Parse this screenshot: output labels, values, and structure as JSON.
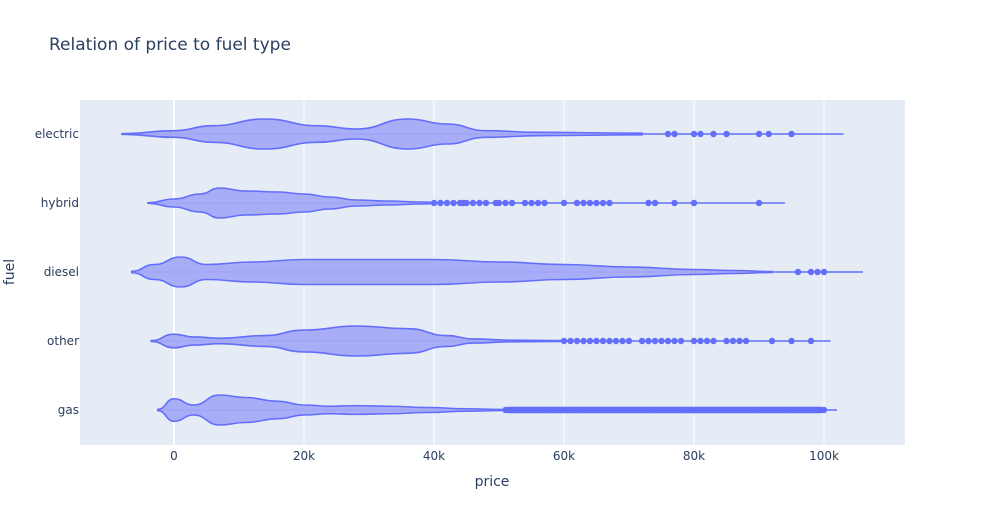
{
  "chart_data": {
    "type": "violin",
    "orientation": "horizontal",
    "title": "Relation of price to fuel type",
    "xlabel": "price",
    "ylabel": "fuel",
    "xlim": [
      -15000,
      112000
    ],
    "x_ticks": [
      0,
      20000,
      40000,
      60000,
      80000,
      100000
    ],
    "x_tick_labels": [
      "0",
      "20k",
      "40k",
      "60k",
      "80k",
      "100k"
    ],
    "categories": [
      "electric",
      "hybrid",
      "diesel",
      "other",
      "gas"
    ],
    "color": "#636efa",
    "fill_color": "#a4aaf7",
    "background_color": "#e5ecf6",
    "grid": true,
    "series": [
      {
        "category": "electric",
        "min": -8000,
        "max": 103000,
        "violin_extent": [
          -8000,
          72000
        ],
        "density": [
          [
            -8000,
            0.2
          ],
          [
            0,
            2
          ],
          [
            6000,
            5
          ],
          [
            14000,
            9
          ],
          [
            22000,
            5
          ],
          [
            28000,
            3
          ],
          [
            36000,
            9
          ],
          [
            42000,
            6
          ],
          [
            48000,
            2
          ],
          [
            56000,
            1
          ],
          [
            72000,
            0.5
          ]
        ],
        "outliers": [
          76000,
          77000,
          80000,
          81000,
          83000,
          85000,
          90000,
          91500,
          95000
        ]
      },
      {
        "category": "hybrid",
        "min": -4000,
        "max": 94000,
        "violin_extent": [
          -4000,
          41000
        ],
        "density": [
          [
            -4000,
            0.2
          ],
          [
            0,
            4
          ],
          [
            4000,
            9
          ],
          [
            7000,
            15
          ],
          [
            11000,
            12
          ],
          [
            16000,
            11
          ],
          [
            20000,
            9
          ],
          [
            24000,
            6
          ],
          [
            28000,
            3
          ],
          [
            33000,
            2
          ],
          [
            38000,
            1
          ],
          [
            41000,
            0.4
          ]
        ],
        "outliers": [
          40000,
          41000,
          42000,
          43000,
          44000,
          44500,
          45000,
          46000,
          47000,
          48000,
          49500,
          50000,
          51000,
          52000,
          54000,
          55000,
          56000,
          57000,
          60000,
          62000,
          63000,
          64000,
          65000,
          66000,
          67000,
          73000,
          74000,
          77000,
          80000,
          90000
        ]
      },
      {
        "category": "diesel",
        "min": -6500,
        "max": 106000,
        "violin_extent": [
          -6500,
          92000
        ],
        "density": [
          [
            -6500,
            0.3
          ],
          [
            -3000,
            3
          ],
          [
            1000,
            6
          ],
          [
            5000,
            3
          ],
          [
            12000,
            4
          ],
          [
            20000,
            5
          ],
          [
            30000,
            5
          ],
          [
            40000,
            5
          ],
          [
            50000,
            4
          ],
          [
            60000,
            3
          ],
          [
            70000,
            2
          ],
          [
            80000,
            1
          ],
          [
            86000,
            0.6
          ],
          [
            92000,
            0.2
          ]
        ],
        "outliers": [
          96000,
          98000,
          99000,
          100000
        ]
      },
      {
        "category": "other",
        "min": -3500,
        "max": 101000,
        "violin_extent": [
          -3500,
          60000
        ],
        "density": [
          [
            -3500,
            0.3
          ],
          [
            0,
            5
          ],
          [
            3000,
            3
          ],
          [
            7000,
            2
          ],
          [
            14000,
            4
          ],
          [
            20000,
            8
          ],
          [
            28000,
            11
          ],
          [
            36000,
            9
          ],
          [
            42000,
            4
          ],
          [
            46000,
            1.5
          ],
          [
            52000,
            0.6
          ],
          [
            60000,
            0.3
          ]
        ],
        "outliers": [
          60000,
          61000,
          62000,
          63000,
          64000,
          65000,
          66000,
          67000,
          68000,
          69000,
          70000,
          72000,
          73000,
          74000,
          75000,
          76000,
          77000,
          78000,
          80000,
          81000,
          82000,
          83000,
          85000,
          86000,
          87000,
          88000,
          92000,
          95000,
          98000
        ]
      },
      {
        "category": "gas",
        "min": -2500,
        "max": 102000,
        "violin_extent": [
          -2500,
          51000
        ],
        "density": [
          [
            -2500,
            0.5
          ],
          [
            0,
            9
          ],
          [
            3000,
            4
          ],
          [
            7000,
            12
          ],
          [
            11000,
            10
          ],
          [
            16000,
            7
          ],
          [
            20000,
            4
          ],
          [
            24000,
            3
          ],
          [
            28000,
            3.5
          ],
          [
            33000,
            3
          ],
          [
            39000,
            2
          ],
          [
            45000,
            1
          ],
          [
            51000,
            0.4
          ]
        ],
        "outliers_range": [
          51000,
          100000
        ],
        "outliers": [
          51000,
          52000,
          53000,
          54000,
          55000,
          56000,
          57000,
          58000,
          59000,
          60000,
          61000,
          62000,
          63000,
          64000,
          65000,
          66000,
          67000,
          68000,
          69000,
          70000,
          71000,
          72000,
          73000,
          74000,
          75000,
          76000,
          77000,
          78000,
          79000,
          80000,
          81000,
          82000,
          83000,
          84000,
          85000,
          86000,
          87000,
          88000,
          89000,
          90000,
          91000,
          92000,
          93000,
          94000,
          95000,
          96000,
          97000,
          98000,
          99000,
          100000
        ]
      }
    ]
  }
}
